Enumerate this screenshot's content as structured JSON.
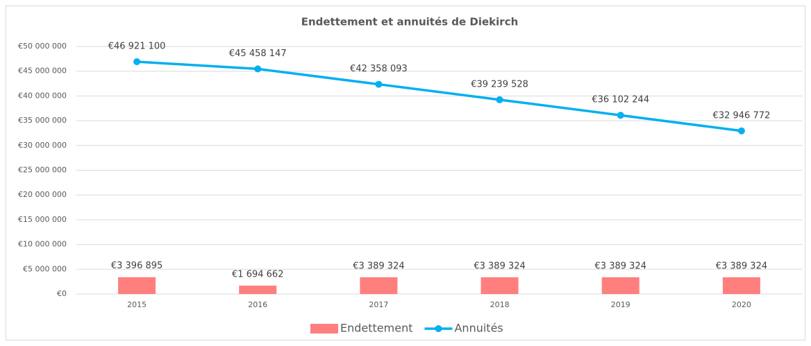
{
  "chart_data": {
    "type": "combo",
    "title": "Endettement et annuités de Diekirch",
    "categories": [
      "2015",
      "2016",
      "2017",
      "2018",
      "2019",
      "2020"
    ],
    "series": [
      {
        "name": "Endettement",
        "type": "bar",
        "color": "#ff7f7f",
        "values": [
          3396895,
          1694662,
          3389324,
          3389324,
          3389324,
          3389324
        ],
        "value_labels": [
          "€3 396 895",
          "€1 694 662",
          "€3 389 324",
          "€3 389 324",
          "€3 389 324",
          "€3 389 324"
        ]
      },
      {
        "name": "Annuités",
        "type": "line",
        "color": "#00b0f0",
        "values": [
          46921100,
          45458147,
          42358093,
          39239528,
          36102244,
          32946772
        ],
        "value_labels": [
          "€46 921 100",
          "€45 458 147",
          "€42 358 093",
          "€39 239 528",
          "€36 102 244",
          "€32 946 772"
        ]
      }
    ],
    "ylim": [
      0,
      50000000
    ],
    "yticks": [
      {
        "value": 0,
        "label": "€0"
      },
      {
        "value": 5000000,
        "label": "€5 000 000"
      },
      {
        "value": 10000000,
        "label": "€10 000 000"
      },
      {
        "value": 15000000,
        "label": "€15 000 000"
      },
      {
        "value": 20000000,
        "label": "€20 000 000"
      },
      {
        "value": 25000000,
        "label": "€25 000 000"
      },
      {
        "value": 30000000,
        "label": "€30 000 000"
      },
      {
        "value": 35000000,
        "label": "€35 000 000"
      },
      {
        "value": 40000000,
        "label": "€40 000 000"
      },
      {
        "value": 45000000,
        "label": "€45 000 000"
      },
      {
        "value": 50000000,
        "label": "€50 000 000"
      }
    ],
    "grid": true,
    "legend": "bottom"
  }
}
